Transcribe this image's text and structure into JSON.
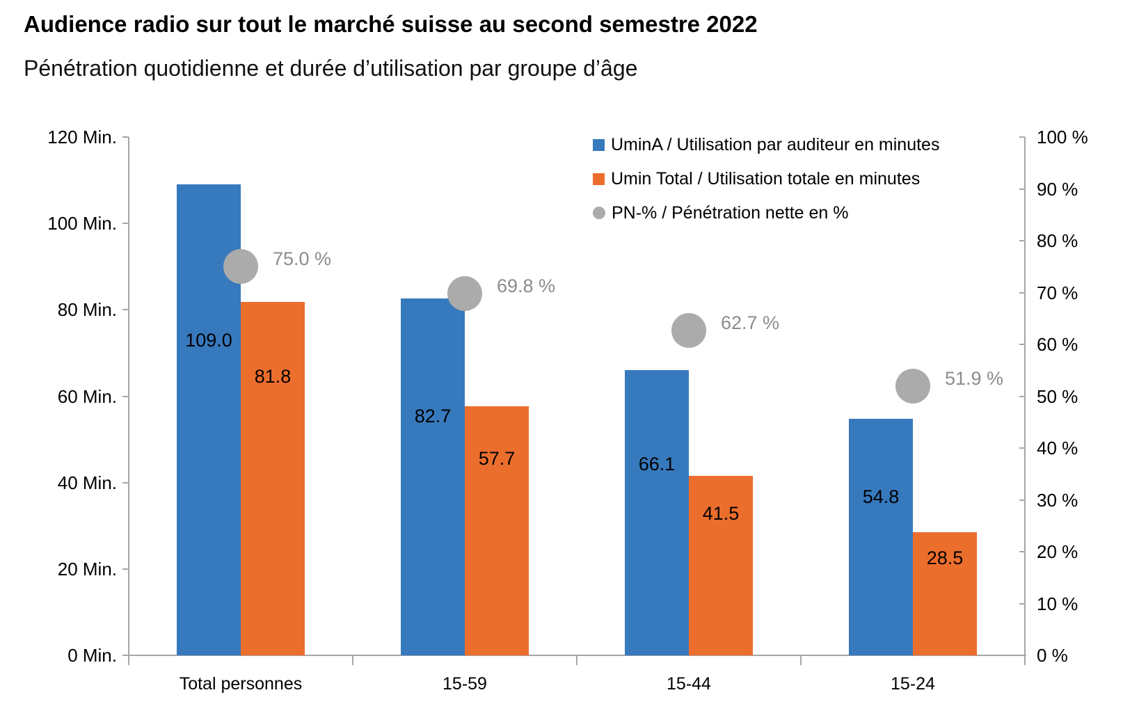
{
  "title": "Audience radio sur tout le marché suisse au second semestre 2022",
  "subtitle": "Pénétration quotidienne et durée d’utilisation par groupe d’âge",
  "colors": {
    "bar_blue": "#3779bd",
    "bar_orange": "#ec6e2d",
    "dot_gray": "#ababab",
    "pn_label_gray": "#8c8c8c",
    "axis_gray": "#a6a6a6",
    "text_black": "#000000"
  },
  "legend": {
    "items": [
      {
        "marker": "square",
        "color_key": "bar_blue",
        "label": "UminA / Utilisation par auditeur en minutes"
      },
      {
        "marker": "square",
        "color_key": "bar_orange",
        "label": "Umin Total / Utilisation totale en minutes"
      },
      {
        "marker": "circle",
        "color_key": "dot_gray",
        "label": "PN-% / Pénétration nette en %"
      }
    ]
  },
  "chart_data": {
    "type": "bar",
    "categories": [
      "Total personnes",
      "15-59",
      "15-44",
      "15-24"
    ],
    "series": [
      {
        "name": "UminA / Utilisation par auditeur en minutes",
        "type": "bar",
        "axis": "left",
        "values": [
          109.0,
          82.7,
          66.1,
          54.8
        ],
        "labels": [
          "109.0",
          "82.7",
          "66.1",
          "54.8"
        ],
        "color_key": "bar_blue"
      },
      {
        "name": "Umin Total / Utilisation totale en minutes",
        "type": "bar",
        "axis": "left",
        "values": [
          81.8,
          57.7,
          41.5,
          28.5
        ],
        "labels": [
          "81.8",
          "57.7",
          "41.5",
          "28.5"
        ],
        "color_key": "bar_orange"
      },
      {
        "name": "PN-% / Pénétration nette en %",
        "type": "point",
        "axis": "right",
        "values": [
          75.0,
          69.8,
          62.7,
          51.9
        ],
        "labels": [
          "75.0 %",
          "69.8 %",
          "62.7 %",
          "51.9 %"
        ],
        "color_key": "dot_gray"
      }
    ],
    "left_axis": {
      "title": "",
      "min": 0,
      "max": 120,
      "tick_step": 20,
      "tick_labels": [
        "0 Min.",
        "20 Min.",
        "40 Min.",
        "60 Min.",
        "80 Min.",
        "100 Min.",
        "120 Min."
      ]
    },
    "right_axis": {
      "title": "",
      "min": 0,
      "max": 100,
      "tick_step": 10,
      "tick_labels": [
        "0 %",
        "10 %",
        "20 %",
        "30 %",
        "40 %",
        "50 %",
        "60 %",
        "70 %",
        "80 %",
        "90 %",
        "100 %"
      ]
    },
    "grid": false,
    "legend_position": "top-right"
  }
}
